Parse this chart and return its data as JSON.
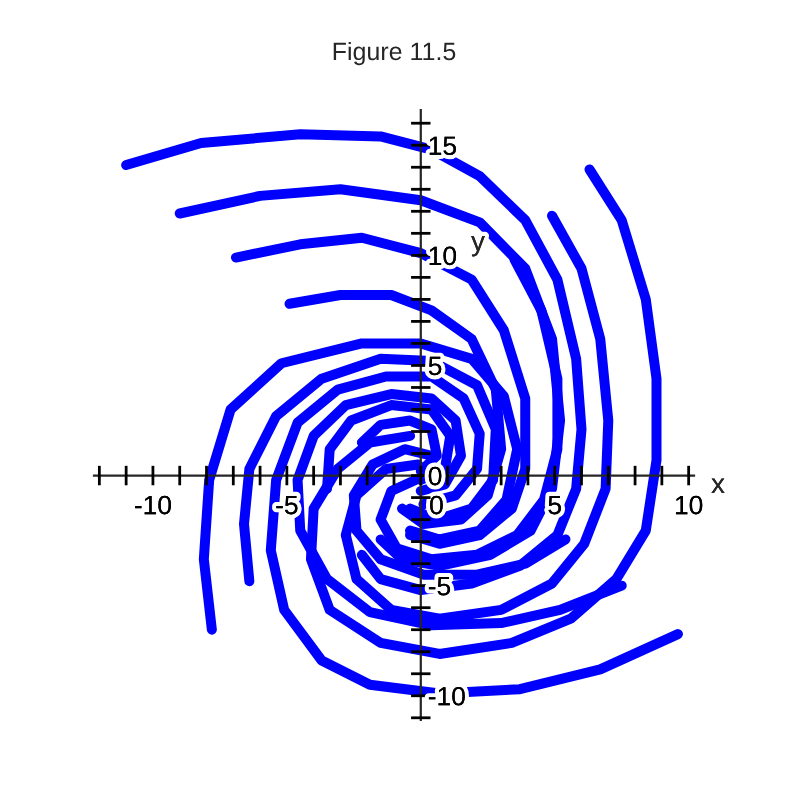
{
  "chart_data": {
    "type": "line",
    "title": "Figure 11.5",
    "xlabel": "x",
    "ylabel": "y",
    "xlim": [
      -12.2,
      10.2
    ],
    "ylim": [
      -11.1,
      16.6
    ],
    "xticks": [
      {
        "value": -12,
        "label": null
      },
      {
        "value": -11,
        "label": null
      },
      -10,
      {
        "value": -9,
        "label": null
      },
      {
        "value": -8,
        "label": null
      },
      {
        "value": -7,
        "label": null
      },
      {
        "value": -6,
        "label": null
      },
      -5,
      {
        "value": -4,
        "label": null
      },
      {
        "value": -3,
        "label": null
      },
      {
        "value": -2,
        "label": null
      },
      {
        "value": -1,
        "label": null
      },
      0,
      {
        "value": 1,
        "label": null
      },
      {
        "value": 2,
        "label": null
      },
      {
        "value": 3,
        "label": null
      },
      {
        "value": 4,
        "label": null
      },
      5,
      {
        "value": 6,
        "label": null
      },
      {
        "value": 7,
        "label": null
      },
      {
        "value": 8,
        "label": null
      },
      {
        "value": 9,
        "label": null
      },
      10
    ],
    "yticks": [
      {
        "value": -11,
        "label": null
      },
      -10,
      {
        "value": -9,
        "label": null
      },
      {
        "value": -8,
        "label": null
      },
      {
        "value": -7,
        "label": null
      },
      {
        "value": -6,
        "label": null
      },
      -5,
      {
        "value": -4,
        "label": null
      },
      {
        "value": -3,
        "label": null
      },
      {
        "value": -2,
        "label": null
      },
      {
        "value": -1,
        "label": null
      },
      0,
      {
        "value": 1,
        "label": null
      },
      {
        "value": 2,
        "label": null
      },
      {
        "value": 3,
        "label": null
      },
      {
        "value": 4,
        "label": null
      },
      5,
      {
        "value": 6,
        "label": null
      },
      {
        "value": 7,
        "label": null
      },
      {
        "value": 8,
        "label": null
      },
      {
        "value": 9,
        "label": null
      },
      10,
      {
        "value": 11,
        "label": null
      },
      {
        "value": 12,
        "label": null
      },
      {
        "value": 13,
        "label": null
      },
      {
        "value": 14,
        "label": null
      },
      15,
      {
        "value": 16,
        "label": null
      }
    ],
    "grid": false,
    "legend": false,
    "marker": "none",
    "line_style": "solid",
    "series": [
      {
        "color": "#0000ff",
        "x": [
          -11.0,
          -8.2,
          -4.5,
          -1.5,
          0.4,
          2.2,
          3.9,
          5.1,
          5.8,
          6.0,
          5.8,
          5.1,
          3.7,
          1.9,
          0.0,
          -1.5,
          -2.2
        ],
        "values": [
          14.1,
          15.1,
          15.5,
          15.4,
          14.8,
          13.6,
          11.6,
          8.9,
          5.3,
          2.1,
          -0.6,
          -2.7,
          -4.1,
          -4.9,
          -5.2,
          -4.7,
          -3.6
        ]
      },
      {
        "color": "#0000ff",
        "x": [
          -9.0,
          -6.0,
          -3.0,
          0.0,
          2.2,
          3.9,
          4.9,
          5.2,
          4.9,
          4.1,
          2.6,
          0.7,
          -0.7,
          -1.5
        ],
        "values": [
          11.9,
          12.7,
          13.0,
          12.5,
          11.5,
          9.4,
          6.2,
          2.5,
          -0.6,
          -2.5,
          -3.6,
          -4.1,
          -3.8,
          -2.9
        ]
      },
      {
        "color": "#0000ff",
        "x": [
          -6.9,
          -4.5,
          -2.2,
          0.0,
          1.9,
          3.1,
          3.9,
          3.9,
          3.4,
          2.2,
          0.7,
          -0.4
        ],
        "values": [
          9.9,
          10.5,
          10.8,
          10.1,
          8.9,
          6.6,
          3.5,
          0.3,
          -1.5,
          -2.7,
          -3.1,
          -2.7
        ]
      },
      {
        "color": "#0000ff",
        "x": [
          -4.9,
          -3.0,
          -1.1,
          0.4,
          1.9,
          2.8,
          3.0,
          2.5,
          1.5,
          0.1,
          -0.7
        ],
        "values": [
          7.8,
          8.2,
          8.2,
          7.5,
          6.2,
          3.9,
          1.2,
          -0.9,
          -2.0,
          -2.2,
          -1.5
        ]
      },
      {
        "color": "#0000ff",
        "x": [
          6.3,
          7.5,
          8.4,
          8.8,
          8.8,
          8.4,
          7.3,
          5.6,
          3.4,
          0.7,
          -1.5,
          -3.4,
          -4.1,
          -4.0,
          -3.1,
          -1.9,
          -0.4
        ],
        "values": [
          13.9,
          11.6,
          8.0,
          4.4,
          0.7,
          -2.5,
          -4.7,
          -6.5,
          -7.6,
          -8.1,
          -7.6,
          -6.1,
          -3.8,
          -1.5,
          0.3,
          1.5,
          1.8
        ]
      },
      {
        "color": "#0000ff",
        "x": [
          4.9,
          6.0,
          6.7,
          7.0,
          6.9,
          6.1,
          4.9,
          3.0,
          0.7,
          -1.1,
          -2.4,
          -2.8,
          -2.4,
          -1.3,
          -0.1
        ],
        "values": [
          11.8,
          9.4,
          6.2,
          2.5,
          -0.6,
          -3.1,
          -4.9,
          -6.1,
          -6.5,
          -6.1,
          -4.7,
          -2.7,
          -0.9,
          0.3,
          0.5
        ]
      },
      {
        "color": "#0000ff",
        "x": [
          3.5,
          4.5,
          5.1,
          5.1,
          4.6,
          3.6,
          2.1,
          0.4,
          -0.9,
          -1.5,
          -1.1,
          -0.2
        ],
        "values": [
          9.8,
          7.5,
          4.4,
          1.2,
          -1.1,
          -2.7,
          -3.6,
          -3.8,
          -3.3,
          -2.0,
          -0.7,
          -0.2
        ]
      },
      {
        "color": "#0000ff",
        "x": [
          9.6,
          6.7,
          3.7,
          0.7,
          -1.9,
          -3.7,
          -5.1,
          -5.6,
          -5.4,
          -4.6,
          -3.1,
          -1.3,
          0.4,
          1.6,
          2.2,
          2.1,
          1.3,
          0.1
        ],
        "values": [
          -7.2,
          -8.8,
          -9.7,
          -9.9,
          -9.5,
          -8.4,
          -6.1,
          -3.4,
          -0.2,
          2.4,
          3.9,
          4.5,
          4.5,
          3.5,
          1.9,
          0.3,
          -0.9,
          -1.3
        ]
      },
      {
        "color": "#0000ff",
        "x": [
          7.5,
          5.2,
          3.0,
          0.4,
          -1.9,
          -3.5,
          -4.5,
          -4.6,
          -4.0,
          -2.8,
          -1.1,
          0.4,
          1.3,
          1.5,
          0.9,
          0.0
        ],
        "values": [
          -5.0,
          -6.1,
          -6.7,
          -6.8,
          -6.2,
          -4.7,
          -2.5,
          -0.2,
          1.8,
          3.2,
          3.7,
          3.5,
          2.5,
          0.9,
          -0.4,
          -0.7
        ]
      },
      {
        "color": "#0000ff",
        "x": [
          -7.8,
          -8.1,
          -7.9,
          -7.1,
          -5.2,
          -2.2,
          0.0,
          1.9,
          3.1,
          3.6,
          3.2,
          2.2,
          0.7,
          -0.4
        ],
        "values": [
          -7.0,
          -3.8,
          -0.2,
          3.0,
          5.1,
          6.0,
          6.0,
          5.3,
          3.6,
          1.2,
          -1.1,
          -2.5,
          -2.9,
          -2.5
        ]
      },
      {
        "color": "#0000ff",
        "x": [
          -6.4,
          -6.6,
          -6.4,
          -5.4,
          -3.7,
          -1.5,
          0.4,
          2.1,
          2.8,
          2.7,
          1.9,
          0.6,
          -0.4
        ],
        "values": [
          -4.8,
          -2.2,
          0.3,
          2.7,
          4.4,
          5.3,
          5.2,
          4.1,
          2.1,
          -0.2,
          -1.5,
          -2.0,
          -1.5
        ]
      },
      {
        "color": "#0000ff",
        "x": [
          -3.5,
          -3.4,
          -2.6,
          -1.1,
          0.4,
          1.1,
          0.9,
          0.0
        ],
        "values": [
          -0.6,
          1.2,
          2.5,
          3.2,
          3.0,
          1.8,
          0.3,
          -0.2
        ]
      },
      {
        "color": "#0000ff",
        "x": [
          5.4,
          3.9,
          2.1,
          0.1,
          -1.5,
          -2.4,
          -2.5,
          -1.8,
          -0.6,
          0.4
        ],
        "values": [
          -2.9,
          -4.0,
          -4.5,
          -4.5,
          -3.8,
          -2.5,
          -0.9,
          0.5,
          1.2,
          0.9
        ]
      },
      {
        "color": "#0000ff",
        "x": [
          -2.2,
          -1.5,
          -0.4,
          0.4,
          0.6,
          0.0
        ],
        "values": [
          1.5,
          2.3,
          2.5,
          2.1,
          0.9,
          0.2
        ]
      }
    ]
  }
}
